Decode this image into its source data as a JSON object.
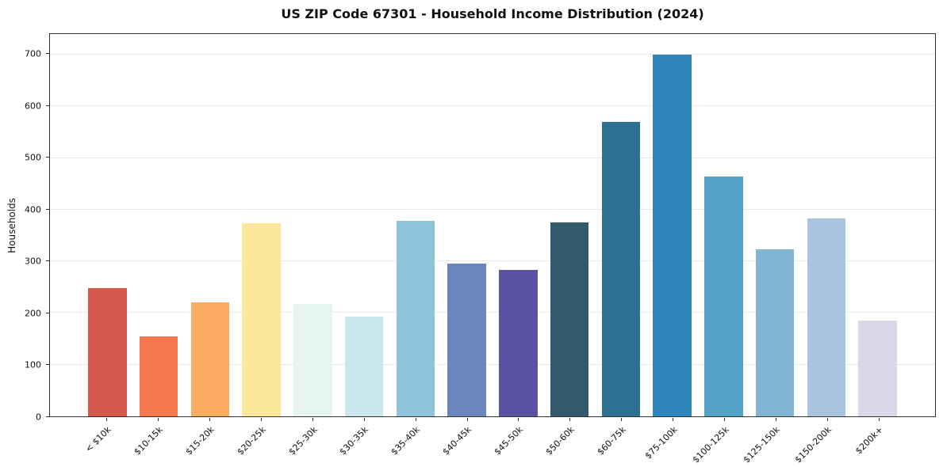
{
  "chart_data": {
    "type": "bar",
    "title": "US ZIP Code 67301 - Household Income Distribution (2024)",
    "xlabel": "",
    "ylabel": "Households",
    "categories": [
      "< $10k",
      "$10-15k",
      "$15-20k",
      "$20-25k",
      "$25-30k",
      "$30-35k",
      "$35-40k",
      "$40-45k",
      "$45-50k",
      "$50-60k",
      "$60-75k",
      "$75-100k",
      "$100-125k",
      "$125-150k",
      "$150-200k",
      "$200k+"
    ],
    "values": [
      248,
      155,
      220,
      374,
      218,
      193,
      378,
      295,
      283,
      375,
      570,
      700,
      465,
      323,
      383,
      185
    ],
    "bar_colors": [
      "#d6574c",
      "#f4794f",
      "#fbab60",
      "#fde79d",
      "#e6f5f1",
      "#cbe7ee",
      "#8fc2dc",
      "#6b85bd",
      "#5a53a4",
      "#315a6d",
      "#2d6f92",
      "#2e86ba",
      "#54a1c5",
      "#81b5d3",
      "#aac4df",
      "#d8d8e7"
    ],
    "ylim": [
      0,
      740
    ],
    "yticks": [
      0,
      100,
      200,
      300,
      400,
      500,
      600,
      700
    ],
    "grid": "horizontal",
    "legend": "none",
    "background": "#ffffff"
  }
}
